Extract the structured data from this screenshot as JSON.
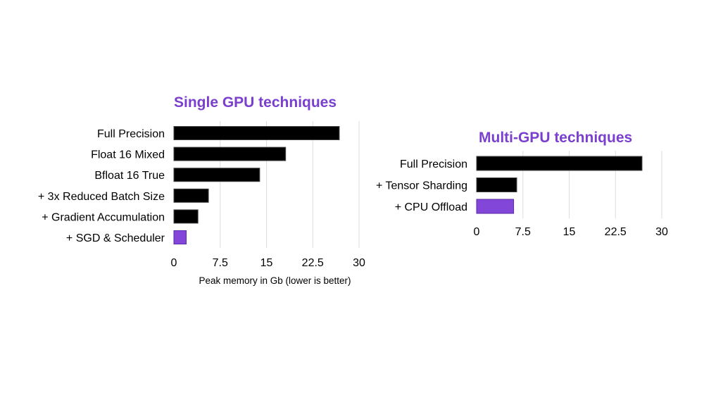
{
  "colors": {
    "default_bar": "#000000",
    "highlight_bar": "#8247d9",
    "title": "#7b3fcf",
    "grid": "#dddddd"
  },
  "chart_data": [
    {
      "type": "bar",
      "orientation": "horizontal",
      "title": "Single GPU techniques",
      "categories": [
        "Full Precision",
        "Float 16 Mixed",
        "Bfloat 16 True",
        "+ 3x Reduced Batch Size",
        "+ Gradient Accumulation",
        "+ SGD & Scheduler"
      ],
      "values": [
        26.8,
        18.1,
        13.9,
        5.6,
        3.9,
        2.0
      ],
      "highlight_index": 5,
      "xlim": [
        0,
        30
      ],
      "xticks": [
        0,
        7.5,
        15,
        22.5,
        30
      ],
      "xtick_labels": [
        "0",
        "7.5",
        "15",
        "22.5",
        "30"
      ],
      "xlabel": "Peak memory in Gb (lower is better)",
      "grid": true
    },
    {
      "type": "bar",
      "orientation": "horizontal",
      "title": "Multi-GPU techniques",
      "categories": [
        "Full Precision",
        "+ Tensor Sharding",
        "+ CPU Offload"
      ],
      "values": [
        26.8,
        6.5,
        6.0
      ],
      "highlight_index": 2,
      "xlim": [
        0,
        30
      ],
      "xticks": [
        0,
        7.5,
        15,
        22.5,
        30
      ],
      "xtick_labels": [
        "0",
        "7.5",
        "15",
        "22.5",
        "30"
      ],
      "xlabel": "",
      "grid": true
    }
  ]
}
